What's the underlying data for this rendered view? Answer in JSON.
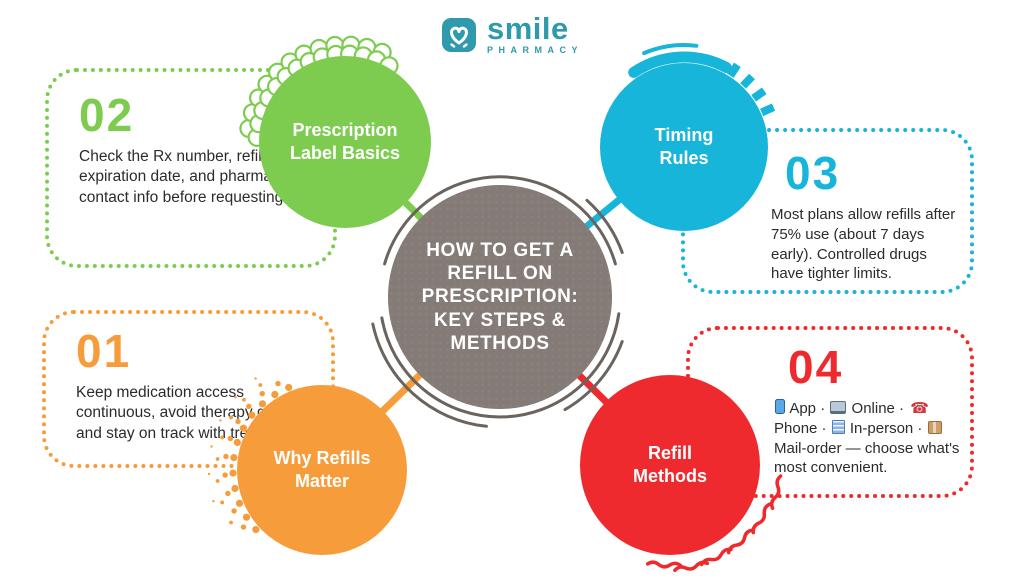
{
  "logo": {
    "name": "smile",
    "tagline": "PHARMACY",
    "color": "#2e9aab"
  },
  "center": {
    "title": "HOW TO GET A REFILL ON PRESCRIPTION: KEY STEPS & METHODS",
    "title_lines": [
      "HOW TO GET A",
      "REFILL ON",
      "PRESCRIPTION:",
      "KEY STEPS &",
      "METHODS"
    ],
    "bg_color": "#847b77"
  },
  "nodes": [
    {
      "number": "01",
      "label": "Why Refills Matter",
      "color": "#f79c3a",
      "text": "Keep medication access continuous, avoid therapy gaps, and stay on track with treatment."
    },
    {
      "number": "02",
      "label": "Prescription Label Basics",
      "color": "#7dcc50",
      "text": "Check the Rx number, refills left, expiration date, and pharmacy contact info before requesting."
    },
    {
      "number": "03",
      "label": "Timing Rules",
      "color": "#17b5da",
      "text": "Most plans allow refills after 75% use (about 7 days early). Controlled drugs have tighter limits."
    },
    {
      "number": "04",
      "label": "Refill Methods",
      "color": "#ef2a2e",
      "text": "📱 App · 💻 Online · ☎️ Phone · 🏥 In-person · 📦 Mail-order — choose what's most convenient.",
      "segments": [
        {
          "icon": "smartphone-icon"
        },
        {
          "text": " App · "
        },
        {
          "icon": "laptop-icon"
        },
        {
          "text": " Online · "
        },
        {
          "icon": "phone-icon"
        },
        {
          "text": " Phone · "
        },
        {
          "icon": "hospital-icon"
        },
        {
          "text": " In-person · "
        },
        {
          "icon": "package-icon"
        },
        {
          "text": " Mail-order — choose what's most convenient."
        }
      ]
    }
  ],
  "arc_color": "#6b635e"
}
